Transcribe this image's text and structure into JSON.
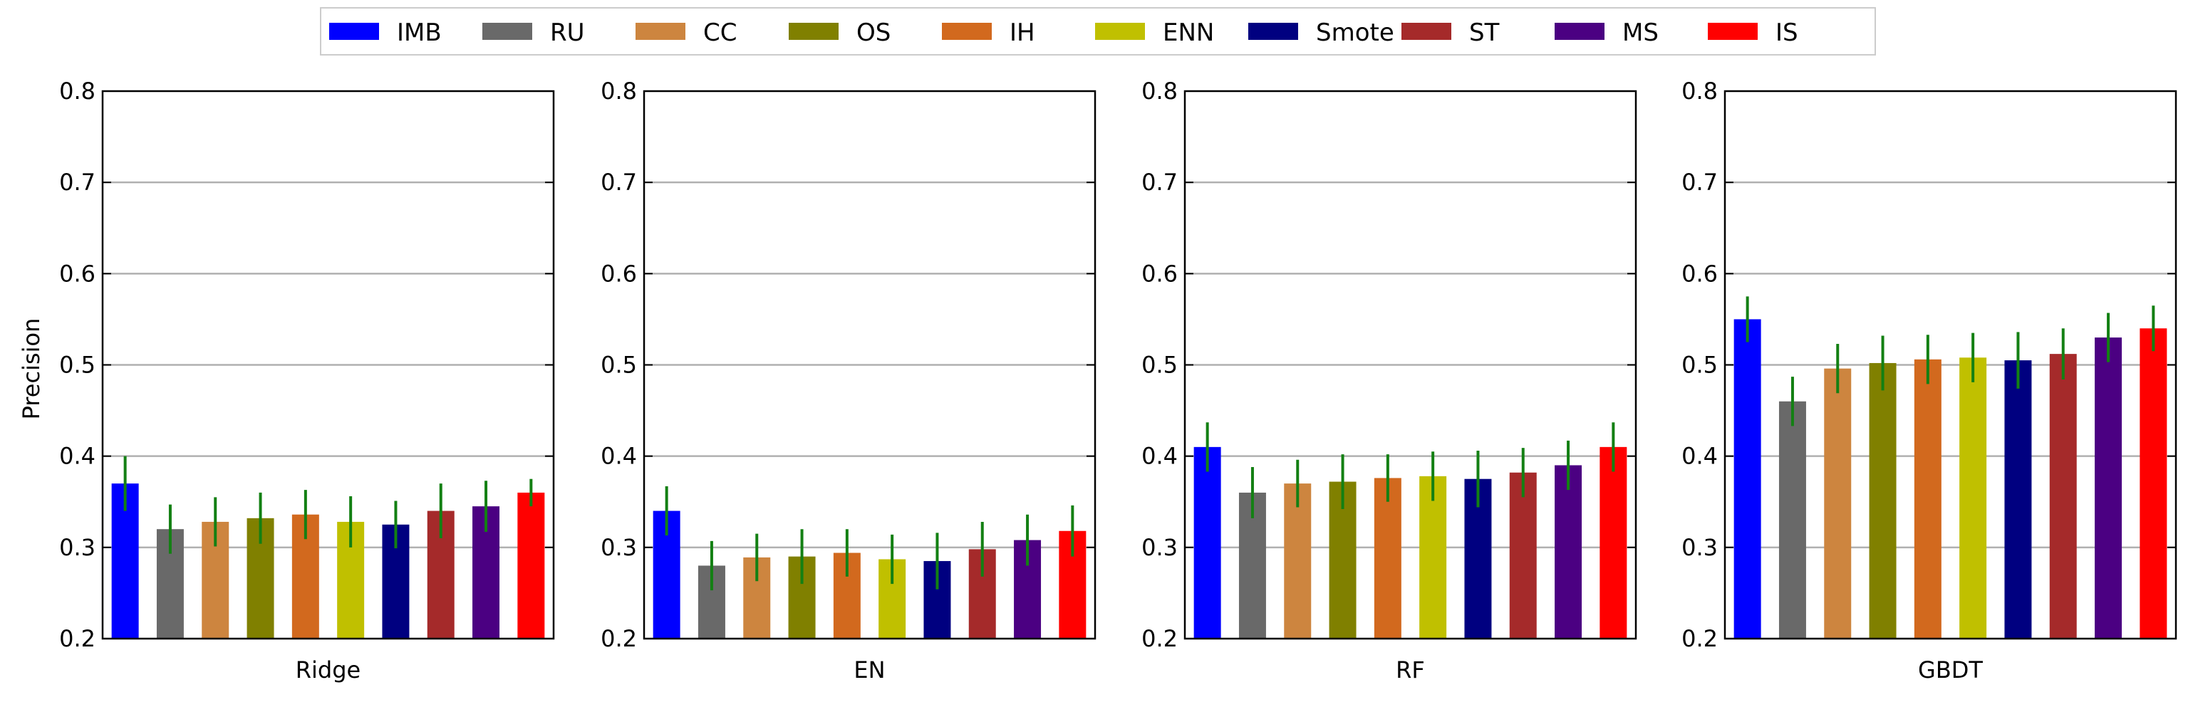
{
  "chart_data": {
    "type": "bar",
    "ylabel": "Precision",
    "ylim": [
      0.2,
      0.8
    ],
    "yticks": [
      0.2,
      0.3,
      0.4,
      0.5,
      0.6,
      0.7,
      0.8
    ],
    "grid": "horizontal",
    "legend_placement": "top-center",
    "error_bar_color": "#138013",
    "series": [
      {
        "name": "IMB",
        "color": "#0000ff"
      },
      {
        "name": "RU",
        "color": "#696969"
      },
      {
        "name": "CC",
        "color": "#cd853f"
      },
      {
        "name": "OS",
        "color": "#808000"
      },
      {
        "name": "IH",
        "color": "#d2691e"
      },
      {
        "name": "ENN",
        "color": "#c0c000"
      },
      {
        "name": "Smote",
        "color": "#000080"
      },
      {
        "name": "ST",
        "color": "#a52a2a"
      },
      {
        "name": "MS",
        "color": "#4b0082"
      },
      {
        "name": "IS",
        "color": "#ff0000"
      }
    ],
    "panels": [
      {
        "xlabel": "Ridge",
        "values": [
          0.37,
          0.32,
          0.328,
          0.332,
          0.336,
          0.328,
          0.325,
          0.34,
          0.345,
          0.36
        ],
        "errors": [
          0.03,
          0.027,
          0.027,
          0.028,
          0.027,
          0.028,
          0.026,
          0.03,
          0.028,
          0.015
        ]
      },
      {
        "xlabel": "EN",
        "values": [
          0.34,
          0.28,
          0.289,
          0.29,
          0.294,
          0.287,
          0.285,
          0.298,
          0.308,
          0.318
        ],
        "errors": [
          0.027,
          0.027,
          0.026,
          0.03,
          0.026,
          0.027,
          0.031,
          0.03,
          0.028,
          0.028
        ]
      },
      {
        "xlabel": "RF",
        "values": [
          0.41,
          0.36,
          0.37,
          0.372,
          0.376,
          0.378,
          0.375,
          0.382,
          0.39,
          0.41
        ],
        "errors": [
          0.027,
          0.028,
          0.026,
          0.03,
          0.026,
          0.027,
          0.031,
          0.027,
          0.027,
          0.027
        ]
      },
      {
        "xlabel": "GBDT",
        "values": [
          0.55,
          0.46,
          0.496,
          0.502,
          0.506,
          0.508,
          0.505,
          0.512,
          0.53,
          0.54
        ],
        "errors": [
          0.025,
          0.027,
          0.027,
          0.03,
          0.027,
          0.027,
          0.031,
          0.028,
          0.027,
          0.025
        ]
      }
    ]
  }
}
